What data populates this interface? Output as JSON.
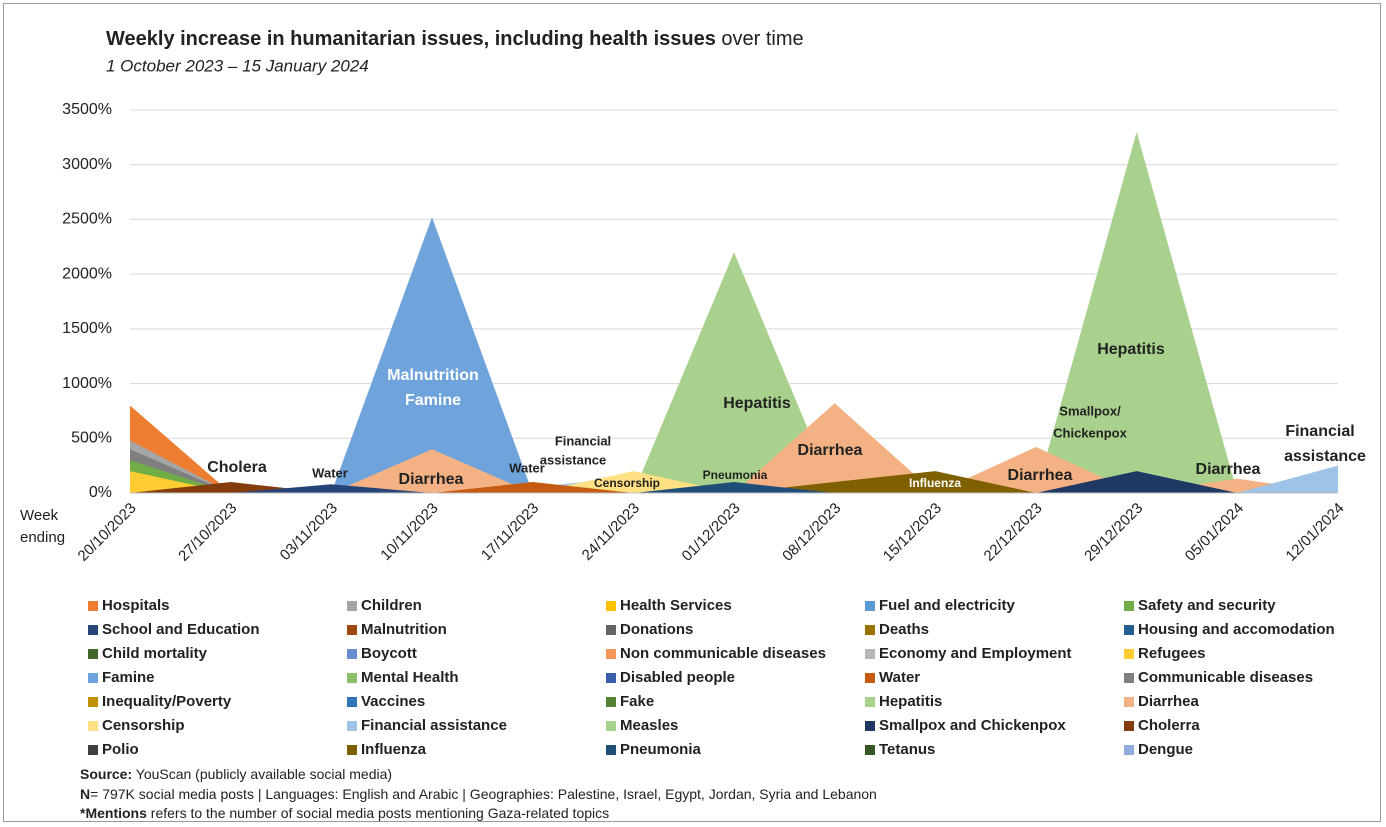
{
  "chart_data": {
    "type": "area",
    "title": "Weekly increase in humanitarian issues, including health issues",
    "title_suffix": "over time",
    "subtitle": "1 October 2023 – 15 January 2024",
    "x_label": [
      "Week",
      "ending"
    ],
    "categories": [
      "20/10/2023",
      "27/10/2023",
      "03/11/2023",
      "10/11/2023",
      "17/11/2023",
      "24/11/2023",
      "01/12/2023",
      "08/12/2023",
      "15/12/2023",
      "22/12/2023",
      "29/12/2023",
      "05/01/2024",
      "12/01/2024"
    ],
    "ylim": [
      0,
      3500
    ],
    "yticks": [
      {
        "value": 0,
        "label": "0%"
      },
      {
        "value": 500,
        "label": "500%"
      },
      {
        "value": 1000,
        "label": "1000%"
      },
      {
        "value": 1500,
        "label": "1500%"
      },
      {
        "value": 2000,
        "label": "2000%"
      },
      {
        "value": 2500,
        "label": "2500%"
      },
      {
        "value": 3000,
        "label": "3000%"
      },
      {
        "value": 3500,
        "label": "3500%"
      }
    ],
    "grid": true,
    "series": [
      {
        "name": "Hospitals",
        "color": "#ed7d31",
        "values": [
          800,
          0,
          0,
          0,
          0,
          0,
          0,
          0,
          0,
          0,
          0,
          0,
          0
        ]
      },
      {
        "name": "Children",
        "color": "#a5a5a5",
        "values": [
          480,
          0,
          0,
          0,
          0,
          0,
          0,
          0,
          0,
          0,
          0,
          0,
          0
        ]
      },
      {
        "name": "Health Services",
        "color": "#ffc000",
        "values": [
          0,
          0,
          0,
          0,
          0,
          0,
          0,
          0,
          0,
          0,
          0,
          0,
          0
        ]
      },
      {
        "name": "Fuel and electricity",
        "color": "#5b9bd5",
        "values": [
          0,
          0,
          0,
          0,
          0,
          0,
          0,
          0,
          0,
          0,
          0,
          0,
          0
        ]
      },
      {
        "name": "Safety and security",
        "color": "#70ad47",
        "values": [
          300,
          0,
          0,
          0,
          0,
          0,
          0,
          0,
          0,
          0,
          0,
          0,
          0
        ]
      },
      {
        "name": "School and Education",
        "color": "#264478",
        "values": [
          0,
          0,
          80,
          0,
          0,
          0,
          0,
          0,
          0,
          0,
          0,
          0,
          0
        ]
      },
      {
        "name": "Malnutrition",
        "color": "#9e480e",
        "values": [
          0,
          0,
          0,
          0,
          0,
          0,
          0,
          0,
          0,
          0,
          0,
          0,
          0
        ]
      },
      {
        "name": "Donations",
        "color": "#636363",
        "values": [
          0,
          0,
          0,
          0,
          0,
          0,
          0,
          0,
          0,
          0,
          0,
          0,
          0
        ]
      },
      {
        "name": "Deaths",
        "color": "#997300",
        "values": [
          0,
          0,
          0,
          0,
          0,
          0,
          0,
          0,
          0,
          0,
          0,
          0,
          0
        ]
      },
      {
        "name": "Housing and accomodation",
        "color": "#255e91",
        "values": [
          0,
          0,
          0,
          0,
          0,
          0,
          0,
          0,
          0,
          0,
          0,
          0,
          0
        ]
      },
      {
        "name": "Child mortality",
        "color": "#43682b",
        "values": [
          0,
          0,
          0,
          0,
          0,
          0,
          0,
          0,
          0,
          0,
          0,
          0,
          0
        ]
      },
      {
        "name": "Boycott",
        "color": "#698ed0",
        "values": [
          0,
          0,
          0,
          0,
          0,
          0,
          0,
          0,
          0,
          0,
          0,
          0,
          0
        ]
      },
      {
        "name": "Non communicable diseases",
        "color": "#f1975a",
        "values": [
          0,
          0,
          0,
          0,
          0,
          0,
          0,
          0,
          0,
          0,
          0,
          0,
          0
        ]
      },
      {
        "name": "Economy and Employment",
        "color": "#b7b7b7",
        "values": [
          0,
          0,
          0,
          0,
          0,
          0,
          0,
          0,
          0,
          0,
          0,
          0,
          0
        ]
      },
      {
        "name": "Refugees",
        "color": "#ffcd33",
        "values": [
          200,
          0,
          0,
          0,
          0,
          0,
          0,
          0,
          0,
          0,
          0,
          0,
          0
        ]
      },
      {
        "name": "Famine",
        "color": "#6fa3dc",
        "values": [
          0,
          0,
          0,
          2520,
          0,
          0,
          0,
          0,
          0,
          0,
          0,
          0,
          0
        ]
      },
      {
        "name": "Mental Health",
        "color": "#8cc168",
        "values": [
          0,
          0,
          0,
          0,
          0,
          0,
          0,
          0,
          0,
          0,
          0,
          0,
          0
        ]
      },
      {
        "name": "Disabled people",
        "color": "#3a5eab",
        "values": [
          0,
          0,
          0,
          0,
          0,
          0,
          0,
          0,
          0,
          0,
          0,
          0,
          0
        ]
      },
      {
        "name": "Water",
        "color": "#c55a11",
        "values": [
          0,
          0,
          60,
          0,
          100,
          0,
          0,
          0,
          0,
          0,
          0,
          0,
          0
        ]
      },
      {
        "name": "Communicable diseases",
        "color": "#7f7f7f",
        "values": [
          400,
          0,
          0,
          0,
          0,
          0,
          0,
          0,
          0,
          0,
          0,
          0,
          0
        ]
      },
      {
        "name": "Inequality/Poverty",
        "color": "#bf9000",
        "values": [
          0,
          0,
          0,
          0,
          0,
          0,
          0,
          0,
          0,
          0,
          0,
          0,
          0
        ]
      },
      {
        "name": "Vaccines",
        "color": "#2e75b6",
        "values": [
          0,
          0,
          0,
          0,
          0,
          0,
          0,
          0,
          0,
          0,
          0,
          0,
          0
        ]
      },
      {
        "name": "Fake",
        "color": "#548235",
        "values": [
          0,
          0,
          0,
          0,
          0,
          0,
          0,
          0,
          0,
          0,
          0,
          0,
          0
        ]
      },
      {
        "name": "Hepatitis",
        "color": "#a9d18e",
        "values": [
          0,
          0,
          0,
          0,
          0,
          0,
          2200,
          0,
          0,
          0,
          3300,
          0,
          0
        ]
      },
      {
        "name": "Diarrhea",
        "color": "#f4b183",
        "values": [
          0,
          0,
          0,
          400,
          0,
          0,
          0,
          820,
          0,
          420,
          0,
          130,
          0
        ]
      },
      {
        "name": "Censorship",
        "color": "#ffe083",
        "values": [
          0,
          0,
          0,
          0,
          0,
          200,
          0,
          0,
          0,
          0,
          0,
          0,
          0
        ]
      },
      {
        "name": "Financial assistance",
        "color": "#9dc3e6",
        "values": [
          0,
          0,
          0,
          0,
          50,
          150,
          0,
          0,
          0,
          0,
          0,
          0,
          250
        ]
      },
      {
        "name": "Measles",
        "color": "#a9d18e",
        "values": [
          0,
          0,
          0,
          0,
          0,
          0,
          0,
          0,
          0,
          0,
          0,
          0,
          0
        ]
      },
      {
        "name": "Smallpox and Chickenpox",
        "color": "#203864",
        "values": [
          0,
          0,
          0,
          0,
          0,
          0,
          0,
          0,
          0,
          0,
          200,
          0,
          0
        ]
      },
      {
        "name": "Cholerra",
        "color": "#843c0c",
        "values": [
          0,
          100,
          0,
          0,
          0,
          0,
          0,
          0,
          0,
          0,
          0,
          0,
          0
        ]
      },
      {
        "name": "Polio",
        "color": "#404040",
        "values": [
          0,
          0,
          0,
          0,
          0,
          0,
          0,
          0,
          0,
          0,
          0,
          0,
          0
        ]
      },
      {
        "name": "Influenza",
        "color": "#7f6000",
        "values": [
          0,
          0,
          0,
          0,
          0,
          0,
          0,
          100,
          200,
          0,
          0,
          0,
          0
        ]
      },
      {
        "name": "Pneumonia",
        "color": "#1f4e79",
        "values": [
          0,
          0,
          0,
          0,
          0,
          0,
          100,
          0,
          0,
          0,
          0,
          0,
          0
        ]
      },
      {
        "name": "Tetanus",
        "color": "#375623",
        "values": [
          0,
          0,
          0,
          0,
          0,
          0,
          0,
          0,
          0,
          0,
          0,
          0,
          0
        ]
      },
      {
        "name": "Dengue",
        "color": "#8faadc",
        "values": [
          0,
          0,
          0,
          0,
          0,
          0,
          0,
          0,
          0,
          0,
          0,
          0,
          0
        ]
      }
    ],
    "annotations": [
      "Cholera",
      "Water",
      "Malnutrition",
      "Famine",
      "Diarrhea",
      "Water",
      "Financial",
      "assistance",
      "Censorship",
      "Hepatitis",
      "Pneumonia",
      "Diarrhea",
      "Influenza",
      "Diarrhea",
      "Smallpox/",
      "Chickenpox",
      "Hepatitis",
      "Diarrhea",
      "Financial",
      "assistance"
    ],
    "source": {
      "label": "Source:",
      "text": " YouScan (publicly available social media)"
    },
    "n_note": {
      "label": "N",
      "text": "= 797K social media posts | Languages: English and Arabic | Geographies: Palestine, Israel, Egypt, Jordan, Syria and Lebanon"
    },
    "mentions_note": {
      "label": "*Mentions",
      "text": " refers to the number of social media posts mentioning Gaza-related topics"
    }
  }
}
